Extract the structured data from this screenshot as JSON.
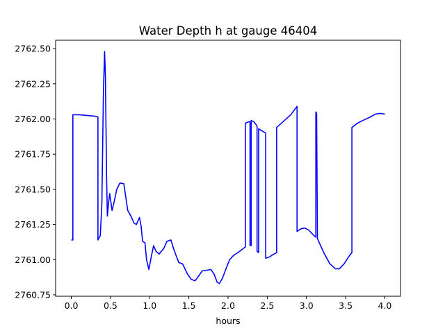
{
  "chart_data": {
    "type": "line",
    "title": "Water Depth h at gauge 46404",
    "xlabel": "hours",
    "ylabel": "",
    "xlim": [
      -0.2,
      4.2
    ],
    "ylim": [
      2760.74,
      2762.56
    ],
    "xticks": [
      0.0,
      0.5,
      1.0,
      1.5,
      2.0,
      2.5,
      3.0,
      3.5,
      4.0
    ],
    "xtick_labels": [
      "0.0",
      "0.5",
      "1.0",
      "1.5",
      "2.0",
      "2.5",
      "3.0",
      "3.5",
      "4.0"
    ],
    "yticks": [
      2760.75,
      2761.0,
      2761.25,
      2761.5,
      2761.75,
      2762.0,
      2762.25,
      2762.5
    ],
    "ytick_labels": [
      "2760.75",
      "2761.00",
      "2761.25",
      "2761.50",
      "2761.75",
      "2762.00",
      "2762.25",
      "2762.50"
    ],
    "grid": false,
    "series": [
      {
        "color": "#0000ff",
        "points": [
          [
            0.0,
            2761.14
          ],
          [
            0.02,
            2761.14
          ],
          [
            0.02,
            2762.03
          ],
          [
            0.1,
            2762.03
          ],
          [
            0.2,
            2762.025
          ],
          [
            0.3,
            2762.02
          ],
          [
            0.34,
            2762.015
          ],
          [
            0.34,
            2761.14
          ],
          [
            0.37,
            2761.17
          ],
          [
            0.39,
            2761.4
          ],
          [
            0.41,
            2762.2
          ],
          [
            0.425,
            2762.48
          ],
          [
            0.435,
            2762.3
          ],
          [
            0.45,
            2761.6
          ],
          [
            0.46,
            2761.31
          ],
          [
            0.475,
            2761.4
          ],
          [
            0.49,
            2761.47
          ],
          [
            0.52,
            2761.35
          ],
          [
            0.55,
            2761.42
          ],
          [
            0.58,
            2761.5
          ],
          [
            0.62,
            2761.545
          ],
          [
            0.67,
            2761.54
          ],
          [
            0.72,
            2761.35
          ],
          [
            0.76,
            2761.31
          ],
          [
            0.8,
            2761.26
          ],
          [
            0.83,
            2761.25
          ],
          [
            0.87,
            2761.3
          ],
          [
            0.89,
            2761.24
          ],
          [
            0.91,
            2761.13
          ],
          [
            0.94,
            2761.12
          ],
          [
            0.96,
            2761.0
          ],
          [
            0.99,
            2760.93
          ],
          [
            1.02,
            2761.02
          ],
          [
            1.05,
            2761.1
          ],
          [
            1.08,
            2761.06
          ],
          [
            1.12,
            2761.04
          ],
          [
            1.18,
            2761.08
          ],
          [
            1.22,
            2761.13
          ],
          [
            1.27,
            2761.14
          ],
          [
            1.31,
            2761.07
          ],
          [
            1.37,
            2760.98
          ],
          [
            1.42,
            2760.97
          ],
          [
            1.48,
            2760.9
          ],
          [
            1.53,
            2760.86
          ],
          [
            1.58,
            2760.85
          ],
          [
            1.62,
            2760.88
          ],
          [
            1.67,
            2760.92
          ],
          [
            1.73,
            2760.925
          ],
          [
            1.78,
            2760.93
          ],
          [
            1.82,
            2760.9
          ],
          [
            1.86,
            2760.84
          ],
          [
            1.89,
            2760.83
          ],
          [
            1.93,
            2760.87
          ],
          [
            1.97,
            2760.93
          ],
          [
            2.02,
            2761.0
          ],
          [
            2.07,
            2761.03
          ],
          [
            2.15,
            2761.06
          ],
          [
            2.22,
            2761.09
          ],
          [
            2.22,
            2761.97
          ],
          [
            2.26,
            2761.98
          ],
          [
            2.28,
            2761.98
          ],
          [
            2.28,
            2761.1
          ],
          [
            2.295,
            2761.1
          ],
          [
            2.295,
            2761.99
          ],
          [
            2.33,
            2761.98
          ],
          [
            2.37,
            2761.95
          ],
          [
            2.37,
            2761.06
          ],
          [
            2.39,
            2761.05
          ],
          [
            2.39,
            2761.93
          ],
          [
            2.42,
            2761.92
          ],
          [
            2.45,
            2761.91
          ],
          [
            2.48,
            2761.9
          ],
          [
            2.48,
            2761.01
          ],
          [
            2.53,
            2761.02
          ],
          [
            2.57,
            2761.035
          ],
          [
            2.62,
            2761.05
          ],
          [
            2.62,
            2761.94
          ],
          [
            2.7,
            2761.98
          ],
          [
            2.8,
            2762.03
          ],
          [
            2.88,
            2762.09
          ],
          [
            2.88,
            2761.2
          ],
          [
            2.93,
            2761.22
          ],
          [
            2.98,
            2761.225
          ],
          [
            3.03,
            2761.21
          ],
          [
            3.08,
            2761.18
          ],
          [
            3.12,
            2761.16
          ],
          [
            3.12,
            2762.05
          ],
          [
            3.13,
            2762.04
          ],
          [
            3.14,
            2761.15
          ],
          [
            3.18,
            2761.1
          ],
          [
            3.23,
            2761.04
          ],
          [
            3.3,
            2760.97
          ],
          [
            3.37,
            2760.935
          ],
          [
            3.42,
            2760.935
          ],
          [
            3.48,
            2760.97
          ],
          [
            3.55,
            2761.03
          ],
          [
            3.58,
            2761.05
          ],
          [
            3.58,
            2761.94
          ],
          [
            3.65,
            2761.97
          ],
          [
            3.72,
            2761.99
          ],
          [
            3.8,
            2762.01
          ],
          [
            3.88,
            2762.035
          ],
          [
            3.94,
            2762.04
          ],
          [
            4.0,
            2762.035
          ]
        ]
      }
    ]
  }
}
